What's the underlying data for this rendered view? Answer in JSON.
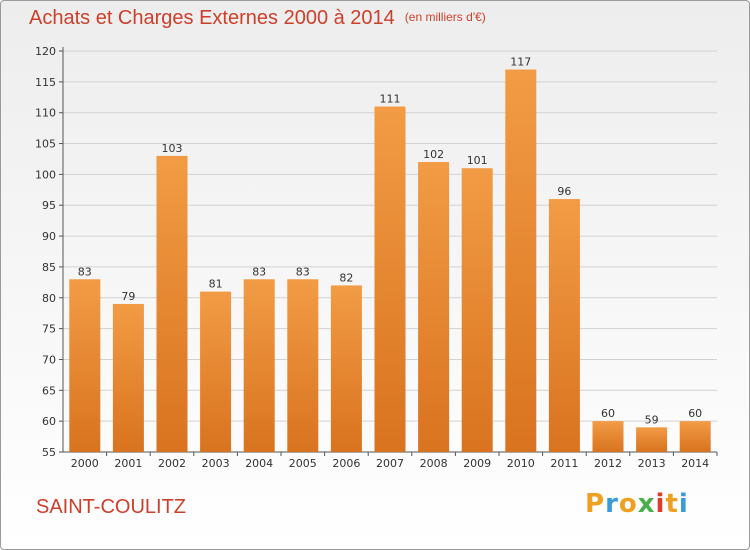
{
  "chart_data": {
    "type": "bar",
    "title": "Achats et Charges Externes 2000 à 2014",
    "subtitle": "(en milliers d'€)",
    "categories": [
      "2000",
      "2001",
      "2002",
      "2003",
      "2004",
      "2005",
      "2006",
      "2007",
      "2008",
      "2009",
      "2010",
      "2011",
      "2012",
      "2013",
      "2014"
    ],
    "values": [
      83,
      79,
      103,
      81,
      83,
      83,
      82,
      111,
      102,
      101,
      117,
      96,
      60,
      59,
      60
    ],
    "ylim": [
      55,
      120
    ],
    "yticks": [
      55,
      60,
      65,
      70,
      75,
      80,
      85,
      90,
      95,
      100,
      105,
      110,
      115,
      120
    ],
    "grid": true,
    "bar_color": "#f29b45",
    "bar_color_dark": "#d9731f"
  },
  "footer": {
    "label": "SAINT-COULITZ"
  },
  "brand": {
    "letters": [
      "P",
      "r",
      "o",
      "x",
      "i",
      "t",
      "i"
    ],
    "colors": [
      "#f0a020",
      "#3a9bd5",
      "#f0a020",
      "#4cae4c",
      "#e03a2f",
      "#f0a020",
      "#3a9bd5"
    ]
  }
}
